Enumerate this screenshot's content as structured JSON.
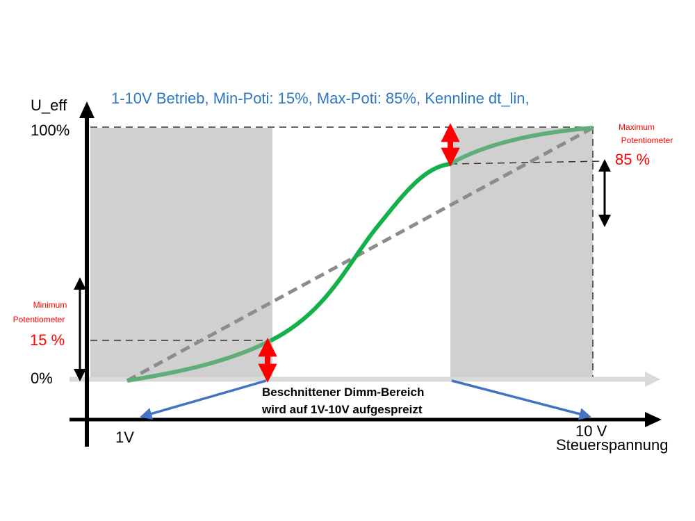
{
  "title": "1-10V Betrieb, Min-Poti: 15%, Max-Poti: 85%, Kennline dt_lin,",
  "y_axis": {
    "label": "U_eff",
    "tick_top": "100%",
    "tick_bottom": "0%"
  },
  "x_axis": {
    "tick_left": "1V",
    "tick_right": "10 V",
    "label": "Steuerspannung"
  },
  "min_poti": {
    "label_line1": "Minimum",
    "label_line2": "Potentiometer",
    "value": "15 %"
  },
  "max_poti": {
    "label_line1": "Maximum",
    "label_line2": "Potentiometer",
    "value": "85 %"
  },
  "annotation": {
    "line1": "Beschnittener Dimm-Bereich",
    "line2": "wird auf 1V-10V aufgespreizt"
  },
  "colors": {
    "title": "#2f77c2",
    "curve": "#14b04a",
    "curve_faded": "#5fae7a",
    "red": "#ff0000",
    "blue_arrow": "#4472c4",
    "shade": "#d0d0d0",
    "diagonal": "#8c8c8c",
    "gray_axis": "#d9d9d9"
  }
}
